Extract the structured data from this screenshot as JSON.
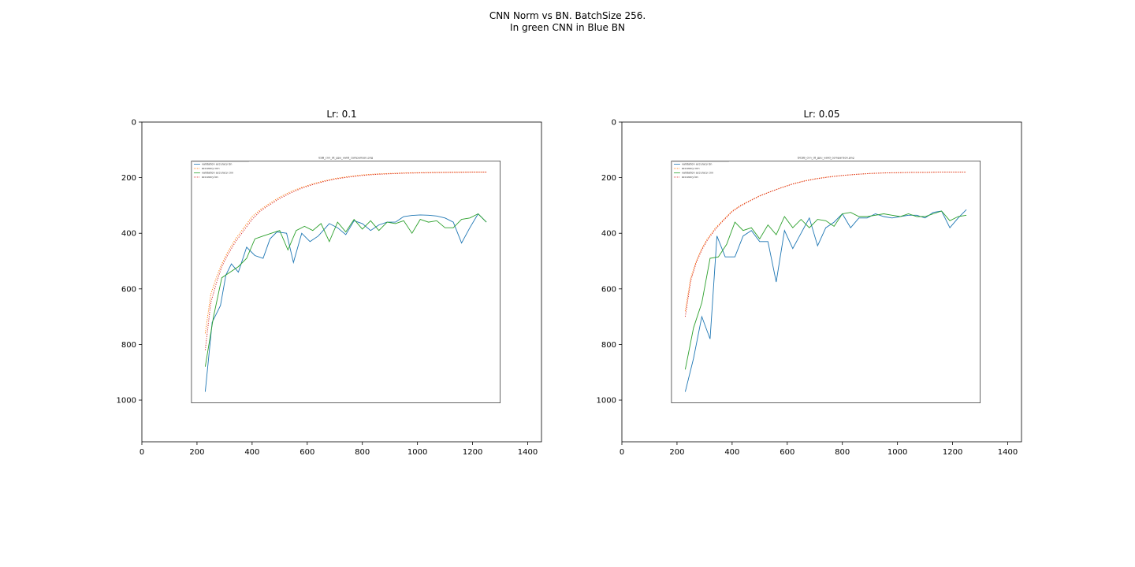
{
  "figure": {
    "suptitle_lines": [
      "CNN Norm vs BN. BatchSize 256.",
      "In green CNN in Blue BN"
    ],
    "colors": {
      "bn": "#1f77b4",
      "cnn": "#2ca02c",
      "orange": "#ff7f0e",
      "red": "#d62728",
      "axes": "#000000"
    }
  },
  "chart_data": [
    {
      "type": "line",
      "title": "Lr: 0.1",
      "xlabel": "",
      "ylabel": "",
      "xlim": [
        0,
        1450
      ],
      "ylim": [
        1150,
        0
      ],
      "xticks": [
        0,
        200,
        400,
        600,
        800,
        1000,
        1200,
        1400
      ],
      "yticks": [
        0,
        200,
        400,
        600,
        800,
        1000
      ],
      "grid": false,
      "embedded_image": {
        "title": "ESB_cnn_dt_gpu_valid_comparison.png",
        "legend": [
          "validation accuracy bn",
          "accuracy cnn",
          "validation accuracy cnn",
          "accuracy bn"
        ],
        "legend_placement": "top-left",
        "frame": {
          "x0": 180,
          "x1": 1300,
          "y0": 140,
          "y1": 1010
        },
        "series": [
          {
            "name": "validation accuracy bn",
            "color": "#1f77b4",
            "style": "solid",
            "x": [
              230,
              255,
              285,
              305,
              325,
              350,
              380,
              410,
              440,
              465,
              490,
              525,
              550,
              580,
              610,
              640,
              680,
              710,
              740,
              770,
              800,
              830,
              860,
              890,
              920,
              950,
              980,
              1010,
              1040,
              1070,
              1100,
              1130,
              1160,
              1190,
              1220,
              1250
            ],
            "y": [
              970,
              720,
              660,
              550,
              510,
              540,
              450,
              480,
              490,
              420,
              395,
              400,
              505,
              400,
              430,
              410,
              365,
              380,
              405,
              355,
              365,
              390,
              370,
              360,
              360,
              340,
              336,
              334,
              335,
              338,
              345,
              360,
              435,
              380,
              330,
              360
            ]
          },
          {
            "name": "validation accuracy cnn",
            "color": "#2ca02c",
            "style": "solid",
            "x": [
              230,
              260,
              290,
              320,
              350,
              380,
              410,
              440,
              470,
              500,
              530,
              560,
              590,
              620,
              650,
              680,
              710,
              740,
              770,
              800,
              830,
              860,
              890,
              920,
              950,
              980,
              1010,
              1040,
              1070,
              1100,
              1130,
              1160,
              1190,
              1220,
              1250
            ],
            "y": [
              880,
              700,
              560,
              540,
              520,
              490,
              420,
              410,
              400,
              390,
              460,
              390,
              375,
              390,
              365,
              430,
              360,
              395,
              350,
              385,
              355,
              390,
              360,
              365,
              355,
              400,
              350,
              360,
              355,
              380,
              380,
              350,
              345,
              330,
              360
            ]
          },
          {
            "name": "accuracy cnn",
            "color": "#ff7f0e",
            "style": "dotted",
            "x": [
              230,
              250,
              270,
              290,
              310,
              340,
              370,
              400,
              430,
              460,
              500,
              540,
              580,
              620,
              660,
              700,
              750,
              800,
              850,
              900,
              950,
              1000,
              1050,
              1100,
              1150,
              1200,
              1250
            ],
            "y": [
              760,
              620,
              560,
              510,
              470,
              420,
              380,
              340,
              315,
              295,
              270,
              250,
              235,
              222,
              212,
              203,
              196,
              190,
              187,
              185,
              183,
              182,
              181,
              181,
              180,
              180,
              180
            ]
          },
          {
            "name": "accuracy bn",
            "color": "#d62728",
            "style": "dotted",
            "x": [
              230,
              250,
              270,
              290,
              310,
              340,
              370,
              400,
              430,
              460,
              500,
              540,
              580,
              620,
              660,
              700,
              750,
              800,
              850,
              900,
              950,
              1000,
              1050,
              1100,
              1150,
              1200,
              1250
            ],
            "y": [
              820,
              650,
              580,
              520,
              480,
              430,
              390,
              350,
              320,
              300,
              275,
              255,
              238,
              225,
              214,
              205,
              198,
              192,
              188,
              186,
              184,
              183,
              182,
              181,
              181,
              180,
              180
            ]
          }
        ]
      }
    },
    {
      "type": "line",
      "title": "Lr: 0.05",
      "xlabel": "",
      "ylabel": "",
      "xlim": [
        0,
        1450
      ],
      "ylim": [
        1150,
        0
      ],
      "xticks": [
        0,
        200,
        400,
        600,
        800,
        1000,
        1200,
        1400
      ],
      "yticks": [
        0,
        200,
        400,
        600,
        800,
        1000
      ],
      "grid": false,
      "embedded_image": {
        "title": "DCSB_cnn_dt_gpu_valid_comparison.png",
        "legend": [
          "validation accuracy bn",
          "accuracy cnn",
          "validation accuracy cnn",
          "accuracy bn"
        ],
        "legend_placement": "top-left",
        "frame": {
          "x0": 180,
          "x1": 1300,
          "y0": 140,
          "y1": 1010
        },
        "series": [
          {
            "name": "validation accuracy bn",
            "color": "#1f77b4",
            "style": "solid",
            "x": [
              230,
              260,
              290,
              320,
              345,
              375,
              410,
              440,
              470,
              500,
              530,
              560,
              590,
              620,
              650,
              680,
              710,
              740,
              770,
              800,
              830,
              860,
              890,
              920,
              950,
              980,
              1010,
              1040,
              1070,
              1100,
              1130,
              1160,
              1190,
              1220,
              1250
            ],
            "y": [
              970,
              850,
              700,
              780,
              410,
              485,
              485,
              410,
              390,
              430,
              430,
              575,
              390,
              455,
              400,
              345,
              445,
              380,
              360,
              330,
              380,
              345,
              345,
              330,
              340,
              345,
              340,
              335,
              335,
              345,
              325,
              320,
              380,
              345,
              315
            ]
          },
          {
            "name": "validation accuracy cnn",
            "color": "#2ca02c",
            "style": "solid",
            "x": [
              230,
              260,
              290,
              320,
              350,
              380,
              410,
              440,
              470,
              500,
              530,
              560,
              590,
              620,
              650,
              680,
              710,
              740,
              770,
              800,
              830,
              860,
              890,
              920,
              950,
              980,
              1010,
              1040,
              1070,
              1100,
              1130,
              1160,
              1190,
              1220,
              1250
            ],
            "y": [
              890,
              740,
              650,
              490,
              485,
              440,
              360,
              390,
              380,
              420,
              370,
              405,
              340,
              380,
              350,
              380,
              350,
              355,
              375,
              330,
              325,
              340,
              340,
              335,
              330,
              335,
              340,
              330,
              340,
              340,
              330,
              320,
              355,
              340,
              335
            ]
          },
          {
            "name": "accuracy cnn",
            "color": "#ff7f0e",
            "style": "dotted",
            "x": [
              230,
              250,
              270,
              290,
              310,
              340,
              370,
              400,
              430,
              460,
              500,
              540,
              580,
              620,
              660,
              700,
              750,
              800,
              850,
              900,
              950,
              1000,
              1050,
              1100,
              1150,
              1200,
              1250
            ],
            "y": [
              680,
              560,
              500,
              455,
              420,
              380,
              350,
              320,
              300,
              285,
              265,
              250,
              235,
              222,
              212,
              204,
              197,
              192,
              188,
              185,
              183,
              182,
              181,
              181,
              180,
              180,
              180
            ]
          },
          {
            "name": "accuracy bn",
            "color": "#d62728",
            "style": "dotted",
            "x": [
              230,
              250,
              270,
              290,
              310,
              340,
              370,
              400,
              430,
              460,
              500,
              540,
              580,
              620,
              660,
              700,
              750,
              800,
              850,
              900,
              950,
              1000,
              1050,
              1100,
              1150,
              1200,
              1250
            ],
            "y": [
              700,
              570,
              505,
              460,
              425,
              385,
              352,
              322,
              302,
              286,
              266,
              250,
              236,
              223,
              213,
              205,
              198,
              192,
              188,
              185,
              183,
              182,
              181,
              181,
              180,
              180,
              180
            ]
          }
        ]
      }
    }
  ]
}
